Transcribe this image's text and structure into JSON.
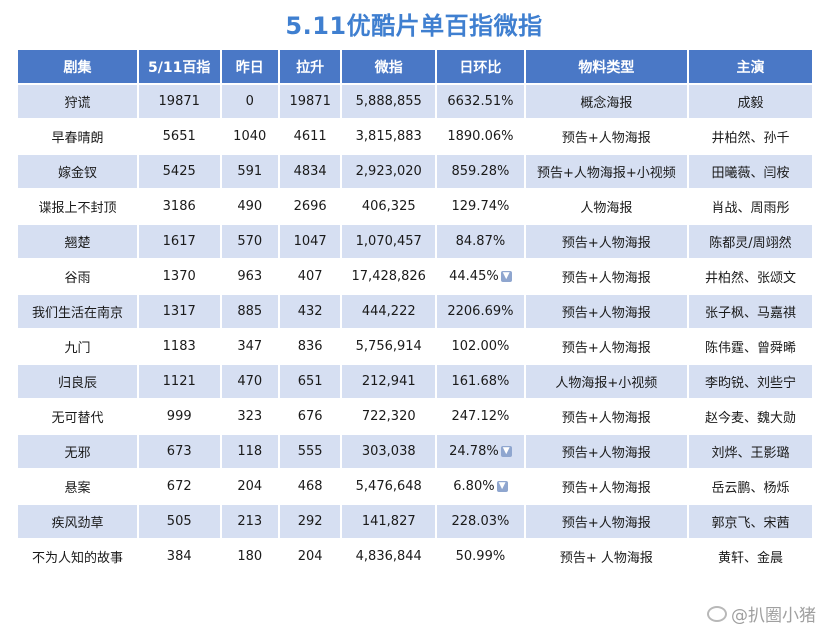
{
  "title": "5.11优酷片单百指微指",
  "headers": [
    "剧集",
    "5/11百指",
    "昨日",
    "拉升",
    "微指",
    "日环比",
    "物料类型",
    "主演"
  ],
  "rows": [
    {
      "show": "狩谎",
      "baizhi": "19871",
      "yesterday": "0",
      "rise": "19871",
      "weizhi": "5,888,855",
      "dod": "6632.51%",
      "down": false,
      "material": "概念海报",
      "cast": "成毅"
    },
    {
      "show": "早春晴朗",
      "baizhi": "5651",
      "yesterday": "1040",
      "rise": "4611",
      "weizhi": "3,815,883",
      "dod": "1890.06%",
      "down": false,
      "material": "预告+人物海报",
      "cast": "井柏然、孙千"
    },
    {
      "show": "嫁金钗",
      "baizhi": "5425",
      "yesterday": "591",
      "rise": "4834",
      "weizhi": "2,923,020",
      "dod": "859.28%",
      "down": false,
      "material": "预告+人物海报+小视频",
      "cast": "田曦薇、闫桉"
    },
    {
      "show": "谍报上不封顶",
      "baizhi": "3186",
      "yesterday": "490",
      "rise": "2696",
      "weizhi": "406,325",
      "dod": "129.74%",
      "down": false,
      "material": "人物海报",
      "cast": "肖战、周雨彤"
    },
    {
      "show": "翘楚",
      "baizhi": "1617",
      "yesterday": "570",
      "rise": "1047",
      "weizhi": "1,070,457",
      "dod": "84.87%",
      "down": false,
      "material": "预告+人物海报",
      "cast": "陈都灵/周翊然"
    },
    {
      "show": "谷雨",
      "baizhi": "1370",
      "yesterday": "963",
      "rise": "407",
      "weizhi": "17,428,826",
      "dod": "44.45%",
      "down": true,
      "material": "预告+人物海报",
      "cast": "井柏然、张颂文"
    },
    {
      "show": "我们生活在南京",
      "baizhi": "1317",
      "yesterday": "885",
      "rise": "432",
      "weizhi": "444,222",
      "dod": "2206.69%",
      "down": false,
      "material": "预告+人物海报",
      "cast": "张子枫、马嘉祺"
    },
    {
      "show": "九门",
      "baizhi": "1183",
      "yesterday": "347",
      "rise": "836",
      "weizhi": "5,756,914",
      "dod": "102.00%",
      "down": false,
      "material": "预告+人物海报",
      "cast": "陈伟霆、曾舜晞"
    },
    {
      "show": "归良辰",
      "baizhi": "1121",
      "yesterday": "470",
      "rise": "651",
      "weizhi": "212,941",
      "dod": "161.68%",
      "down": false,
      "material": "人物海报+小视频",
      "cast": "李昀锐、刘些宁"
    },
    {
      "show": "无可替代",
      "baizhi": "999",
      "yesterday": "323",
      "rise": "676",
      "weizhi": "722,320",
      "dod": "247.12%",
      "down": false,
      "material": "预告+人物海报",
      "cast": "赵今麦、魏大勋"
    },
    {
      "show": "无邪",
      "baizhi": "673",
      "yesterday": "118",
      "rise": "555",
      "weizhi": "303,038",
      "dod": "24.78%",
      "down": true,
      "material": "预告+人物海报",
      "cast": "刘烨、王影璐"
    },
    {
      "show": "悬案",
      "baizhi": "672",
      "yesterday": "204",
      "rise": "468",
      "weizhi": "5,476,648",
      "dod": "6.80%",
      "down": true,
      "material": "预告+人物海报",
      "cast": "岳云鹏、杨烁"
    },
    {
      "show": "疾风劲草",
      "baizhi": "505",
      "yesterday": "213",
      "rise": "292",
      "weizhi": "141,827",
      "dod": "228.03%",
      "down": false,
      "material": "预告+人物海报",
      "cast": "郭京飞、宋茜"
    },
    {
      "show": "不为人知的故事",
      "baizhi": "384",
      "yesterday": "180",
      "rise": "204",
      "weizhi": "4,836,844",
      "dod": "50.99%",
      "down": false,
      "material": "预告+ 人物海报",
      "cast": "黄轩、金晨"
    }
  ],
  "watermark": "@扒圈小猪",
  "colors": {
    "header_bg": "#4a78c6",
    "odd_row_bg": "#d6dff2",
    "title": "#3f7fd0"
  }
}
